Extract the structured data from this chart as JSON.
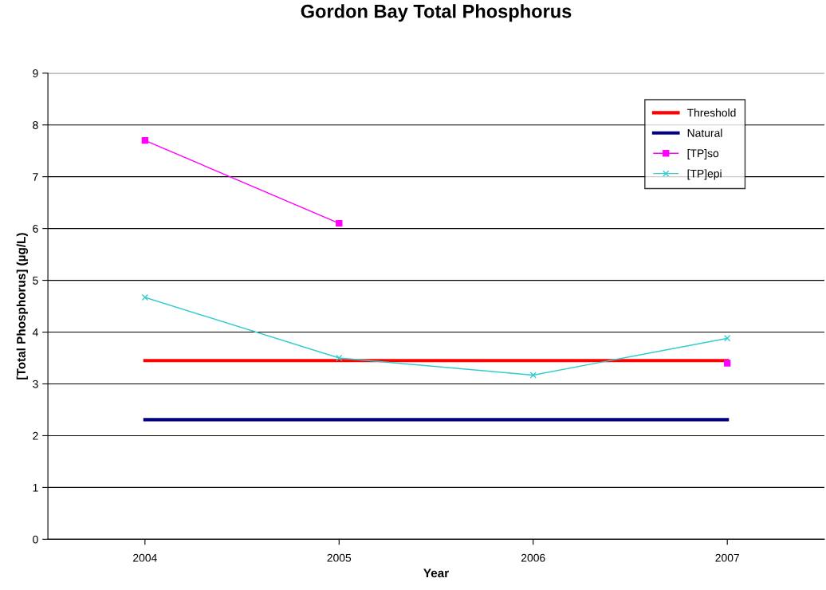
{
  "chart_data": {
    "type": "line",
    "title": "Gordon Bay Total Phosphorus",
    "xlabel": "Year",
    "ylabel": "[Total Phosphorus] (µg/L)",
    "x": [
      2004,
      2005,
      2006,
      2007
    ],
    "xlim": [
      2003.5,
      2007.5
    ],
    "xticks": [
      2004,
      2005,
      2006,
      2007
    ],
    "series": [
      {
        "name": "Threshold",
        "color": "#ff0000",
        "values": [
          3.45,
          3.45,
          3.45,
          3.45
        ],
        "marker": "none"
      },
      {
        "name": "Natural",
        "color": "#000080",
        "values": [
          2.31,
          2.31,
          2.31,
          2.31
        ],
        "marker": "none"
      },
      {
        "name": "[TP]so",
        "color": "#ff00ff",
        "values": [
          7.7,
          6.1,
          null,
          3.4
        ],
        "marker": "square"
      },
      {
        "name": "[TP]epi",
        "color": "#33cccc",
        "values": [
          4.67,
          3.5,
          3.17,
          3.88
        ],
        "marker": "cross"
      }
    ],
    "ylim": [
      0,
      9
    ],
    "yticks": [
      0,
      1,
      2,
      3,
      4,
      5,
      6,
      7,
      8,
      9
    ],
    "grid": "y",
    "legend": "top right",
    "line_style": "solid"
  }
}
